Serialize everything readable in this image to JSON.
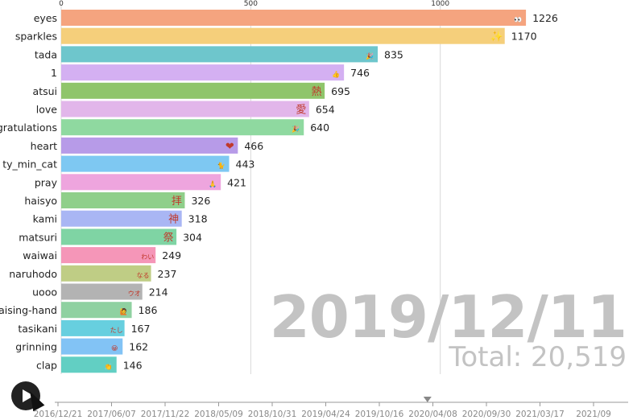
{
  "chart_data": {
    "type": "bar",
    "orientation": "horizontal",
    "xlim": [
      0,
      1270
    ],
    "x_ticks": [
      0,
      500,
      1000
    ],
    "categories": [
      "eyes",
      "sparkles",
      "tada",
      "1",
      "atsui",
      "love",
      "gratulations",
      "heart",
      "ty_min_cat",
      "pray",
      "haisyo",
      "kami",
      "matsuri",
      "waiwai",
      "naruhodo",
      "uooo",
      "aising-hand",
      "tasikani",
      "grinning",
      "clap"
    ],
    "values": [
      1226,
      1170,
      835,
      746,
      695,
      654,
      640,
      466,
      443,
      421,
      326,
      318,
      304,
      249,
      237,
      214,
      186,
      167,
      162,
      146
    ],
    "colors": [
      "#f5a47f",
      "#f5cf7b",
      "#6ec6cc",
      "#d4b0f2",
      "#8fc56b",
      "#e2b6ea",
      "#8fd9a0",
      "#b79be8",
      "#7ec8f2",
      "#eea5de",
      "#8fcf8a",
      "#a9b6f4",
      "#7fd4a4",
      "#f596b8",
      "#bfcd85",
      "#b3b3b3",
      "#8fd1a1",
      "#67cfdf",
      "#82c3f5",
      "#62cfc3"
    ],
    "icons": [
      "eyes-icon",
      "sparkles-icon",
      "tada-icon",
      "thumbs-up-icon",
      "atsui-icon",
      "love-icon",
      "tada-icon",
      "heart-icon",
      "cat-icon",
      "pray-icon",
      "haisyo-icon",
      "kami-icon",
      "matsuri-icon",
      "waiwai-icon",
      "naruhodo-icon",
      "uooo-icon",
      "raising-hand-icon",
      "tasikani-icon",
      "grinning-icon",
      "clap-icon"
    ],
    "icon_glyphs": [
      "👀",
      "✨",
      "🎉",
      "👍",
      "熱",
      "愛",
      "🎉",
      "❤",
      "🐈",
      "🙏",
      "拝",
      "神",
      "祭",
      "わい",
      "なる",
      "ウオ",
      "🙋",
      "たし",
      "😀",
      "👏"
    ]
  },
  "date": "2019/12/11",
  "total": "Total: 20,519",
  "timeline": {
    "labels": [
      "2016/12/21",
      "2017/06/07",
      "2017/11/22",
      "2018/05/09",
      "2018/10/31",
      "2019/04/24",
      "2019/10/16",
      "2020/04/08",
      "2020/09/30",
      "2021/03/17",
      "2021/09"
    ],
    "current_fraction": 0.65
  }
}
